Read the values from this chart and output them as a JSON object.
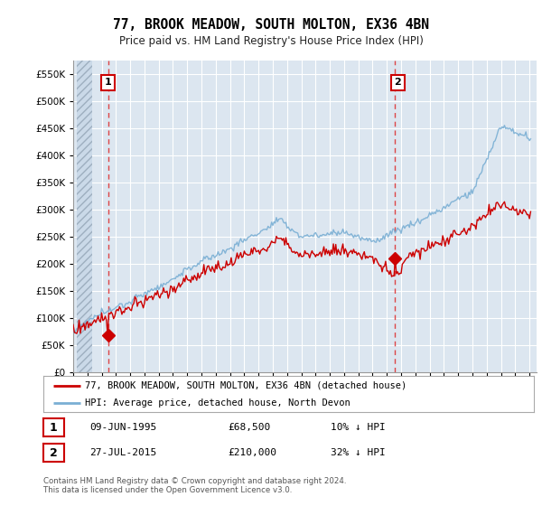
{
  "title": "77, BROOK MEADOW, SOUTH MOLTON, EX36 4BN",
  "subtitle": "Price paid vs. HM Land Registry's House Price Index (HPI)",
  "ylabel_ticks": [
    0,
    50000,
    100000,
    150000,
    200000,
    250000,
    300000,
    350000,
    400000,
    450000,
    500000,
    550000
  ],
  "ylim": [
    0,
    575000
  ],
  "xlim_start": 1993.25,
  "xlim_end": 2025.5,
  "sale1_year": 1995.44,
  "sale1_price": 68500,
  "sale2_year": 2015.57,
  "sale2_price": 210000,
  "legend_line1": "77, BROOK MEADOW, SOUTH MOLTON, EX36 4BN (detached house)",
  "legend_line2": "HPI: Average price, detached house, North Devon",
  "table_row1": [
    "1",
    "09-JUN-1995",
    "£68,500",
    "10% ↓ HPI"
  ],
  "table_row2": [
    "2",
    "27-JUL-2015",
    "£210,000",
    "32% ↓ HPI"
  ],
  "footer": "Contains HM Land Registry data © Crown copyright and database right 2024.\nThis data is licensed under the Open Government Licence v3.0.",
  "red_color": "#cc0000",
  "blue_color": "#7aafd4",
  "plot_bg": "#dce6f0"
}
